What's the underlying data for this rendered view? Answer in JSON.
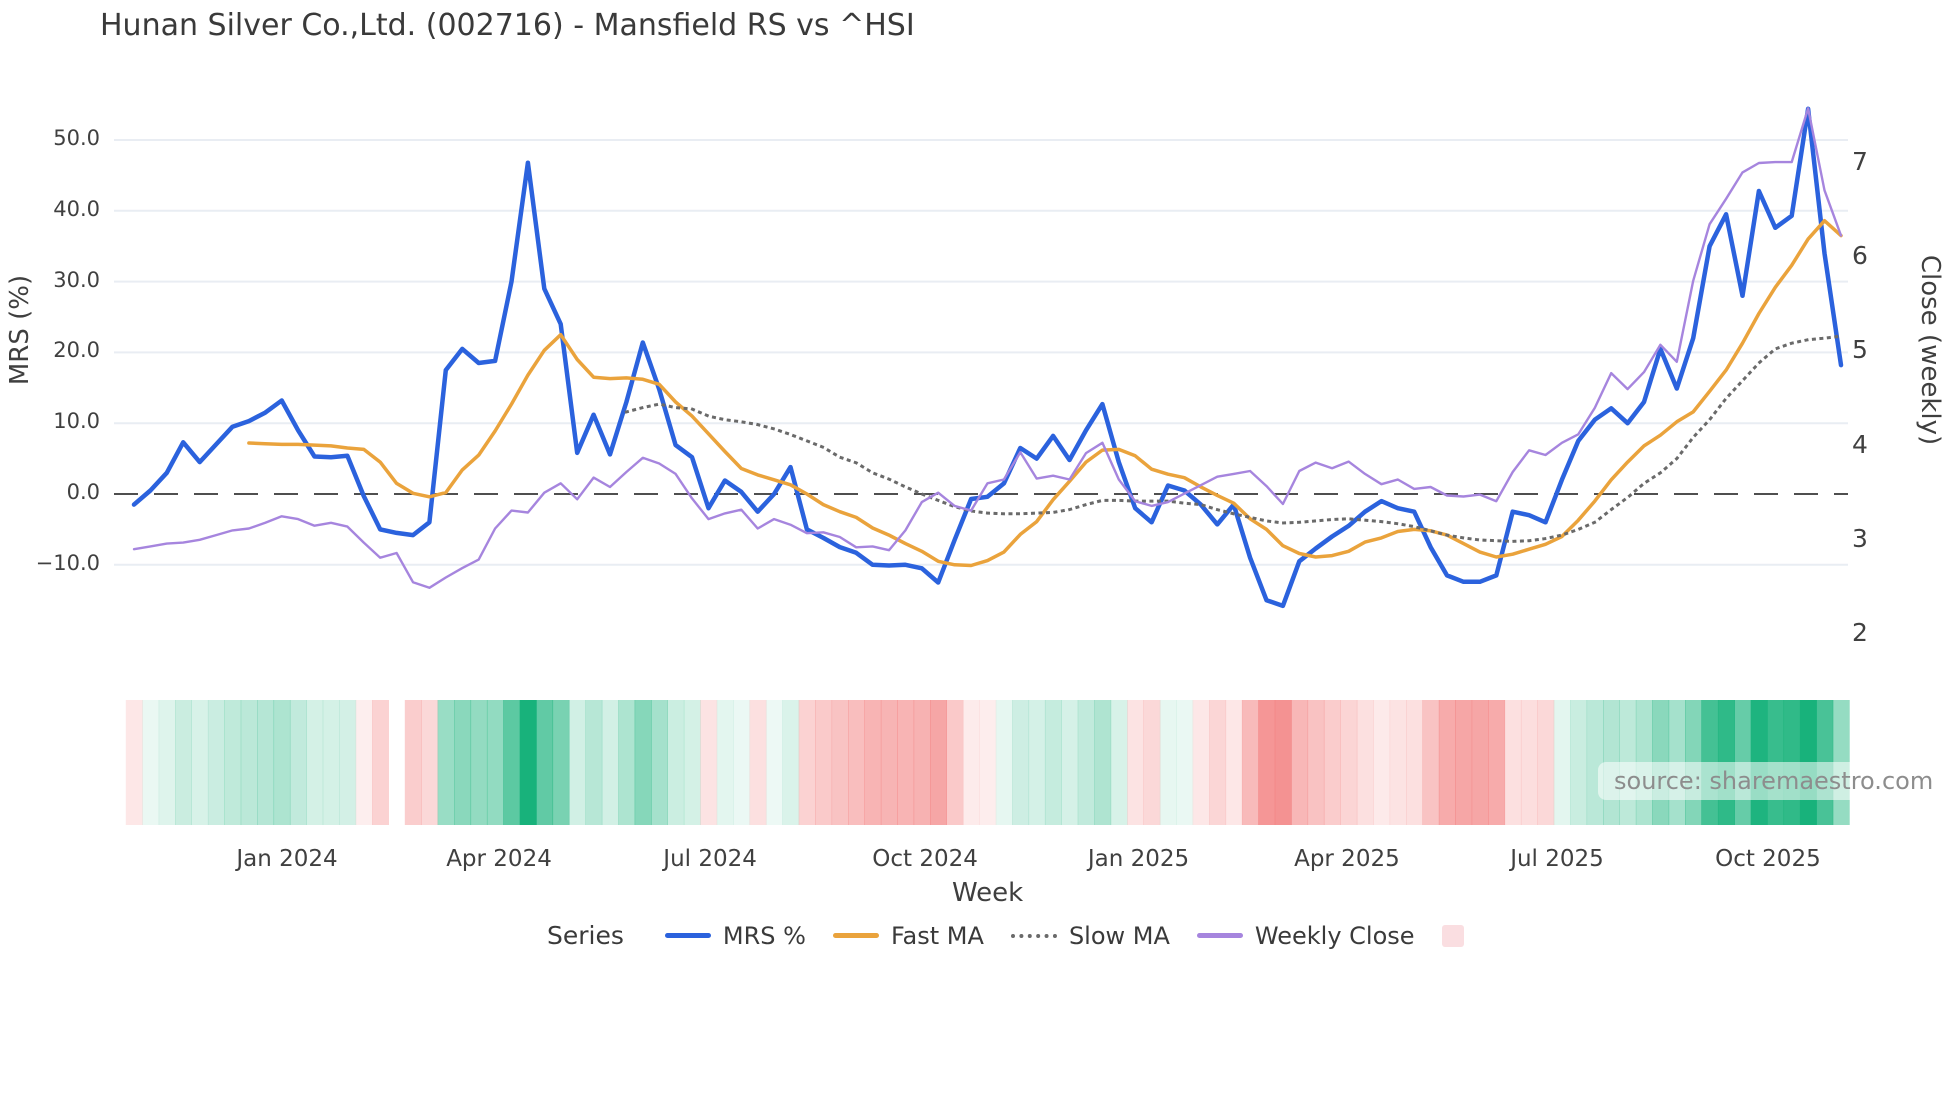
{
  "title": "Hunan Silver Co.,Ltd. (002716) - Mansfield RS vs ^HSI",
  "source": "source: sharemaestro.com",
  "axes": {
    "left": {
      "title": "MRS (%)",
      "tick_labels": [
        "50.0",
        "40.0",
        "30.0",
        "20.0",
        "10.0",
        "0.0",
        "−10.0"
      ],
      "tick_values": [
        50,
        40,
        30,
        20,
        10,
        0,
        -10
      ]
    },
    "right": {
      "title": "Close (weekly)",
      "tick_labels": [
        "7",
        "6",
        "5",
        "4",
        "3",
        "2"
      ],
      "tick_values": [
        7,
        6,
        5,
        4,
        3,
        2
      ]
    },
    "x": {
      "title": "Week",
      "tick_labels": [
        "Jan 2024",
        "Apr 2024",
        "Jul 2024",
        "Oct 2024",
        "Jan 2025",
        "Apr 2025",
        "Jul 2025",
        "Oct 2025"
      ],
      "tick_week_index": [
        9.32,
        22.24,
        35.1,
        48.2,
        61.2,
        73.9,
        86.7,
        99.55
      ]
    }
  },
  "legend": {
    "label": "Series",
    "items": [
      {
        "label": "MRS %",
        "color": "#2b62dd",
        "style": "solid"
      },
      {
        "label": "Fast MA",
        "color": "#eaa33c",
        "style": "solid"
      },
      {
        "label": "Slow MA",
        "color": "#6a6a6a",
        "style": "dotted"
      },
      {
        "label": "Weekly Close",
        "color": "#a685de",
        "style": "solid"
      },
      {
        "label": "",
        "color": "#fadee1",
        "style": "square"
      }
    ]
  },
  "chart_data": {
    "type": "line",
    "x_unit": "week",
    "n_weeks": 105,
    "x_range_note": "weekly data, late Oct 2023 through early Nov 2025",
    "ylim_left": [
      -17,
      55
    ],
    "ylim_right": [
      2,
      7.7
    ],
    "grid": "horizontal, left axis only",
    "zero_line": {
      "value": 0,
      "style": "long-dash",
      "color": "#4f4f4f"
    },
    "series": [
      {
        "name": "MRS %",
        "axis": "left",
        "color": "#2b62dd",
        "width": 4.5,
        "style": "solid",
        "values": [
          -1.5,
          0.5,
          3,
          7.3,
          4.5,
          7,
          9.5,
          10.3,
          11.5,
          13.2,
          9,
          5.3,
          5.2,
          5.4,
          -0.3,
          -5,
          -5.5,
          -5.8,
          -4,
          17.5,
          20.5,
          18.5,
          18.8,
          30,
          46.8,
          29,
          24,
          5.8,
          11.2,
          5.6,
          13,
          21.4,
          14.8,
          6.9,
          5.2,
          -2,
          1.9,
          0.3,
          -2.5,
          0,
          3.8,
          -5,
          -6.2,
          -7.5,
          -8.3,
          -10,
          -10.1,
          -10,
          -10.5,
          -12.5,
          -6.5,
          -0.7,
          -0.4,
          1.5,
          6.5,
          5,
          8.2,
          4.8,
          9,
          12.7,
          4.5,
          -2,
          -4,
          1.2,
          0.5,
          -1.5,
          -4.3,
          -1.5,
          -9,
          -15,
          -15.8,
          -9.5,
          -7.7,
          -6,
          -4.5,
          -2.5,
          -1,
          -2,
          -2.5,
          -7.5,
          -11.5,
          -12.4,
          -12.4,
          -11.5,
          -2.5,
          -3,
          -4,
          2,
          7.5,
          10.5,
          12.1,
          10,
          13,
          20.5,
          14.9,
          22,
          35,
          39.5,
          28,
          42.8,
          37.6,
          39.3,
          54.4,
          34,
          18.2
        ]
      },
      {
        "name": "Fast MA",
        "axis": "left",
        "color": "#eaa33c",
        "width": 3.5,
        "style": "solid",
        "values": [
          null,
          null,
          null,
          null,
          null,
          null,
          null,
          7.2,
          7.1,
          7,
          7,
          6.9,
          6.8,
          6.5,
          6.3,
          4.5,
          1.5,
          0.1,
          -0.4,
          0.2,
          3.4,
          5.5,
          8.9,
          12.7,
          16.8,
          20.3,
          22.5,
          19,
          16.5,
          16.3,
          16.4,
          16.2,
          15.5,
          13,
          11,
          8.5,
          6,
          3.6,
          2.7,
          2,
          1.3,
          0,
          -1.5,
          -2.5,
          -3.3,
          -4.8,
          -5.8,
          -7,
          -8.1,
          -9.5,
          -10,
          -10.1,
          -9.4,
          -8.2,
          -5.7,
          -3.9,
          -0.8,
          1.8,
          4.5,
          6.2,
          6.3,
          5.4,
          3.5,
          2.8,
          2.3,
          1,
          -0.2,
          -1.3,
          -3.5,
          -5,
          -7.3,
          -8.4,
          -8.9,
          -8.7,
          -8.1,
          -6.8,
          -6.2,
          -5.3,
          -5,
          -5.2,
          -5.8,
          -7,
          -8.2,
          -8.9,
          -8.5,
          -7.8,
          -7.1,
          -6,
          -3.7,
          -1,
          2,
          4.5,
          6.8,
          8.3,
          10.2,
          11.6,
          14.5,
          17.5,
          21.3,
          25.5,
          29.2,
          32.3,
          36,
          38.6,
          36.5
        ]
      },
      {
        "name": "Slow MA",
        "axis": "left",
        "color": "#6a6a6a",
        "width": 3,
        "style": "dotted",
        "values": [
          null,
          null,
          null,
          null,
          null,
          null,
          null,
          null,
          null,
          null,
          null,
          null,
          null,
          null,
          null,
          null,
          null,
          null,
          null,
          null,
          null,
          null,
          null,
          null,
          null,
          null,
          null,
          null,
          null,
          null,
          11.6,
          12.2,
          12.7,
          12.2,
          12,
          11,
          10.5,
          10.2,
          9.8,
          9.2,
          8.4,
          7.5,
          6.6,
          5.2,
          4.4,
          3,
          2.1,
          1,
          0,
          -0.9,
          -1.8,
          -2.4,
          -2.7,
          -2.8,
          -2.8,
          -2.7,
          -2.6,
          -2.2,
          -1.5,
          -0.9,
          -0.9,
          -1,
          -1,
          -1,
          -1.3,
          -1.5,
          -2.2,
          -2.8,
          -3.3,
          -3.8,
          -4.1,
          -4,
          -3.8,
          -3.6,
          -3.5,
          -3.7,
          -3.9,
          -4.2,
          -4.6,
          -5.2,
          -5.8,
          -6.2,
          -6.5,
          -6.6,
          -6.7,
          -6.6,
          -6.3,
          -5.8,
          -5,
          -4,
          -2.2,
          -0.5,
          1.5,
          3,
          5,
          8,
          10.5,
          13.5,
          16,
          18.5,
          20.5,
          21.3,
          21.8,
          22,
          22.3
        ]
      },
      {
        "name": "Weekly Close",
        "axis": "right",
        "color": "#a685de",
        "width": 2.4,
        "style": "solid",
        "values": [
          2.9,
          2.93,
          2.96,
          2.97,
          3,
          3.05,
          3.1,
          3.12,
          3.18,
          3.25,
          3.22,
          3.15,
          3.18,
          3.14,
          2.97,
          2.81,
          2.86,
          2.55,
          2.49,
          2.6,
          2.7,
          2.79,
          3.12,
          3.31,
          3.29,
          3.5,
          3.6,
          3.43,
          3.66,
          3.56,
          3.72,
          3.87,
          3.81,
          3.7,
          3.44,
          3.22,
          3.28,
          3.32,
          3.12,
          3.22,
          3.16,
          3.07,
          3.08,
          3.03,
          2.92,
          2.93,
          2.89,
          3.1,
          3.4,
          3.5,
          3.36,
          3.31,
          3.6,
          3.64,
          3.93,
          3.65,
          3.68,
          3.64,
          3.92,
          4.03,
          3.64,
          3.41,
          3.36,
          3.4,
          3.49,
          3.58,
          3.67,
          3.7,
          3.73,
          3.57,
          3.38,
          3.73,
          3.82,
          3.76,
          3.83,
          3.7,
          3.59,
          3.64,
          3.54,
          3.56,
          3.47,
          3.46,
          3.48,
          3.41,
          3.72,
          3.95,
          3.9,
          4.03,
          4.12,
          4.4,
          4.77,
          4.6,
          4.78,
          5.07,
          4.89,
          5.75,
          6.35,
          6.62,
          6.9,
          7,
          7.01,
          7.01,
          7.58,
          6.71,
          6.23
        ]
      }
    ],
    "heatmap": {
      "based_on": "MRS %",
      "description": "weekly strip below plot: green for positive MRS, pink for negative, intensity scales with magnitude",
      "gap_week_index": 16,
      "positive_color": "#18b27b",
      "negative_color": "#f27d7d"
    }
  }
}
